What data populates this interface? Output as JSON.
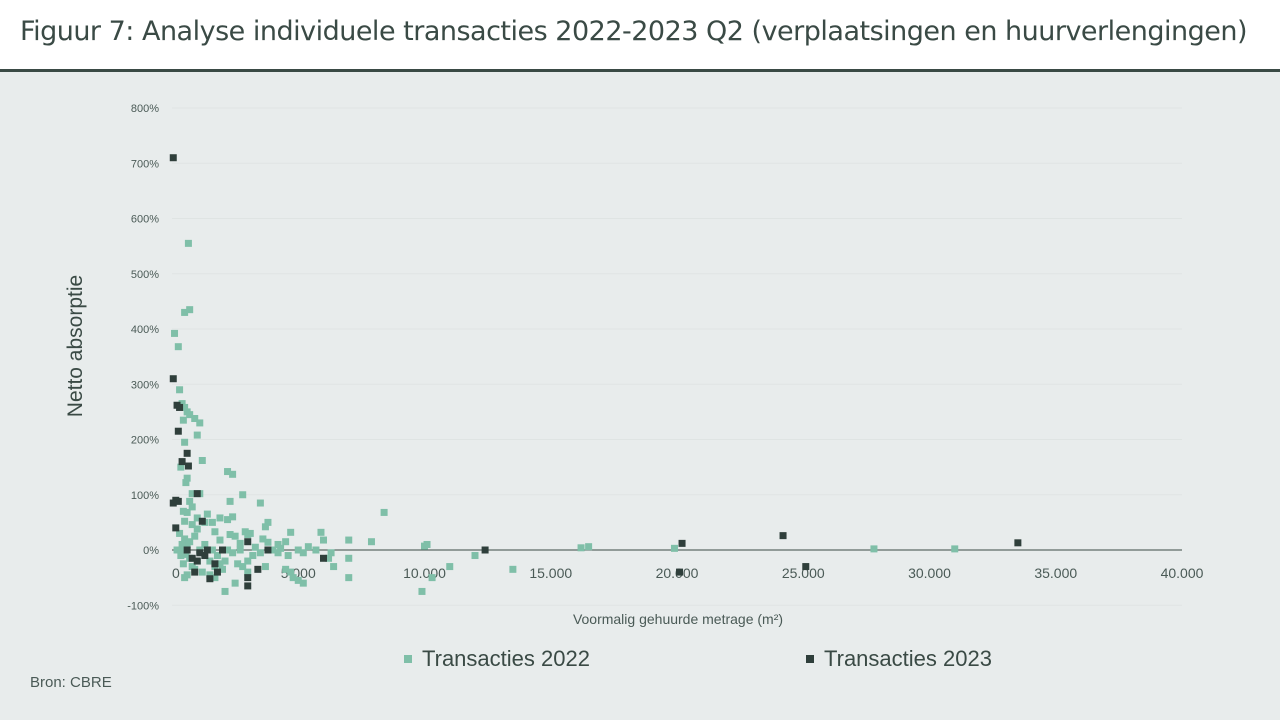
{
  "header": {
    "title": "Figuur 7: Analyse individuele transacties 2022-2023 Q2 (verplaatsingen en huurverlengingen)"
  },
  "footer": {
    "source": "Bron: CBRE"
  },
  "colors": {
    "series_2022": "#7fbfa8",
    "series_2023": "#2f3f3b",
    "axis": "#3a4a45",
    "grid": "#dfe4e3"
  },
  "chart_data": {
    "type": "scatter",
    "title": "",
    "xlabel": "Voormalig gehuurde metrage (m²)",
    "ylabel": "Netto absorptie",
    "xlim": [
      0,
      40000
    ],
    "ylim": [
      -100,
      800
    ],
    "x_ticks": [
      "0",
      "5.000",
      "10.000",
      "15.000",
      "20.000",
      "25.000",
      "30.000",
      "35.000",
      "40.000"
    ],
    "y_ticks": [
      "-100%",
      "0%",
      "100%",
      "200%",
      "300%",
      "400%",
      "500%",
      "600%",
      "700%",
      "800%"
    ],
    "grid": "horizontal",
    "legend_position": "bottom",
    "series": [
      {
        "name": "Transacties 2022",
        "points": [
          [
            100,
            392
          ],
          [
            250,
            368
          ],
          [
            500,
            430
          ],
          [
            700,
            435
          ],
          [
            650,
            555
          ],
          [
            300,
            290
          ],
          [
            400,
            265
          ],
          [
            500,
            258
          ],
          [
            600,
            250
          ],
          [
            700,
            245
          ],
          [
            900,
            238
          ],
          [
            1100,
            230
          ],
          [
            1200,
            162
          ],
          [
            450,
            235
          ],
          [
            500,
            195
          ],
          [
            350,
            150
          ],
          [
            600,
            130
          ],
          [
            550,
            122
          ],
          [
            2200,
            142
          ],
          [
            2400,
            137
          ],
          [
            1000,
            208
          ],
          [
            800,
            102
          ],
          [
            1100,
            102
          ],
          [
            2800,
            100
          ],
          [
            3500,
            85
          ],
          [
            2300,
            88
          ],
          [
            8400,
            68
          ],
          [
            700,
            88
          ],
          [
            800,
            78
          ],
          [
            450,
            70
          ],
          [
            600,
            68
          ],
          [
            1400,
            65
          ],
          [
            1000,
            58
          ],
          [
            1900,
            58
          ],
          [
            2400,
            60
          ],
          [
            2200,
            55
          ],
          [
            1600,
            50
          ],
          [
            1300,
            50
          ],
          [
            3800,
            50
          ],
          [
            3700,
            42
          ],
          [
            500,
            52
          ],
          [
            800,
            46
          ],
          [
            2900,
            33
          ],
          [
            3100,
            30
          ],
          [
            4700,
            32
          ],
          [
            5900,
            32
          ],
          [
            2500,
            25
          ],
          [
            3000,
            28
          ],
          [
            3600,
            20
          ],
          [
            4500,
            15
          ],
          [
            6000,
            18
          ],
          [
            7000,
            18
          ],
          [
            7900,
            15
          ],
          [
            1000,
            38
          ],
          [
            1700,
            33
          ],
          [
            2300,
            28
          ],
          [
            1900,
            18
          ],
          [
            2700,
            12
          ],
          [
            3800,
            14
          ],
          [
            4200,
            10
          ],
          [
            5400,
            6
          ],
          [
            10000,
            7
          ],
          [
            10100,
            10
          ],
          [
            16200,
            4
          ],
          [
            16500,
            6
          ],
          [
            19900,
            3
          ],
          [
            27800,
            2
          ],
          [
            31000,
            2
          ],
          [
            500,
            20
          ],
          [
            700,
            15
          ],
          [
            900,
            25
          ],
          [
            300,
            30
          ],
          [
            600,
            10
          ],
          [
            400,
            0
          ],
          [
            550,
            -8
          ],
          [
            700,
            -15
          ],
          [
            800,
            -30
          ],
          [
            1000,
            -20
          ],
          [
            1500,
            -20
          ],
          [
            1700,
            -30
          ],
          [
            1900,
            -25
          ],
          [
            2100,
            -20
          ],
          [
            2600,
            -25
          ],
          [
            2800,
            -30
          ],
          [
            3000,
            -20
          ],
          [
            3200,
            -10
          ],
          [
            3500,
            -5
          ],
          [
            4000,
            0
          ],
          [
            4200,
            -5
          ],
          [
            4600,
            -10
          ],
          [
            5000,
            0
          ],
          [
            5200,
            -5
          ],
          [
            6300,
            -5
          ],
          [
            6400,
            -30
          ],
          [
            4700,
            -40
          ],
          [
            4500,
            -35
          ],
          [
            4800,
            -50
          ],
          [
            5000,
            -55
          ],
          [
            5200,
            -60
          ],
          [
            7000,
            -50
          ],
          [
            7000,
            -15
          ],
          [
            2500,
            -60
          ],
          [
            2100,
            -75
          ],
          [
            1500,
            -45
          ],
          [
            1700,
            -50
          ],
          [
            1200,
            -40
          ],
          [
            900,
            -35
          ],
          [
            600,
            -45
          ],
          [
            500,
            -50
          ],
          [
            11000,
            -30
          ],
          [
            10300,
            -50
          ],
          [
            9900,
            -75
          ],
          [
            12000,
            -10
          ],
          [
            13500,
            -35
          ],
          [
            2200,
            0
          ],
          [
            2700,
            0
          ],
          [
            1600,
            0
          ],
          [
            1100,
            0
          ],
          [
            200,
            0
          ],
          [
            450,
            -25
          ],
          [
            350,
            -10
          ],
          [
            400,
            10
          ],
          [
            1300,
            10
          ],
          [
            1800,
            -10
          ],
          [
            2400,
            -5
          ],
          [
            3300,
            5
          ],
          [
            4300,
            3
          ],
          [
            5700,
            0
          ],
          [
            6200,
            -15
          ],
          [
            3000,
            -40
          ],
          [
            3700,
            -30
          ],
          [
            2000,
            -35
          ]
        ]
      },
      {
        "name": "Transacties 2023",
        "points": [
          [
            50,
            710
          ],
          [
            50,
            310
          ],
          [
            200,
            262
          ],
          [
            300,
            258
          ],
          [
            250,
            215
          ],
          [
            600,
            175
          ],
          [
            400,
            160
          ],
          [
            650,
            152
          ],
          [
            1000,
            102
          ],
          [
            150,
            90
          ],
          [
            250,
            88
          ],
          [
            50,
            85
          ],
          [
            150,
            40
          ],
          [
            1200,
            52
          ],
          [
            3000,
            15
          ],
          [
            20200,
            12
          ],
          [
            24200,
            26
          ],
          [
            33500,
            13
          ],
          [
            20100,
            -40
          ],
          [
            25100,
            -30
          ],
          [
            12400,
            0
          ],
          [
            3800,
            0
          ],
          [
            3400,
            -35
          ],
          [
            3000,
            -50
          ],
          [
            3000,
            -65
          ],
          [
            1500,
            -52
          ],
          [
            1800,
            -40
          ],
          [
            2000,
            0
          ],
          [
            600,
            0
          ],
          [
            800,
            -15
          ],
          [
            1000,
            -20
          ],
          [
            1300,
            -10
          ],
          [
            1400,
            0
          ],
          [
            1700,
            -25
          ],
          [
            900,
            -40
          ],
          [
            1100,
            -5
          ],
          [
            6000,
            -15
          ]
        ]
      }
    ]
  }
}
